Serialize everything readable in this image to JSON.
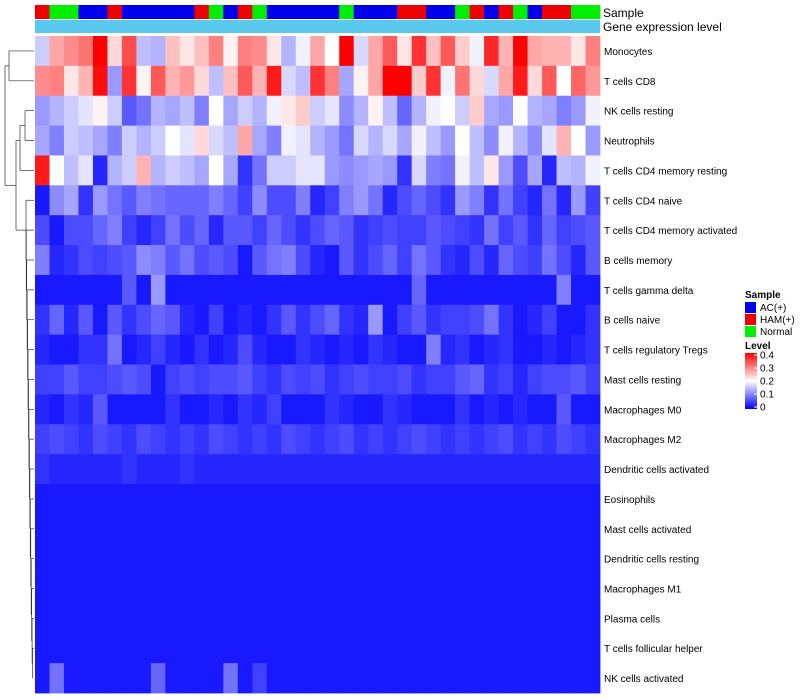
{
  "chart_data": {
    "type": "heatmap",
    "annotation_labels": {
      "sample": "Sample",
      "gene": "Gene expression level"
    },
    "sample_groups": [
      "R",
      "G",
      "G",
      "B",
      "B",
      "R",
      "B",
      "B",
      "B",
      "B",
      "B",
      "R",
      "G",
      "B",
      "R",
      "G",
      "B",
      "B",
      "B",
      "B",
      "B",
      "G",
      "B",
      "B",
      "B",
      "R",
      "R",
      "B",
      "B",
      "G",
      "R",
      "B",
      "R",
      "G",
      "B",
      "R",
      "R",
      "G",
      "G"
    ],
    "rows": [
      "Monocytes",
      "T cells CD8",
      "NK cells resting",
      "Neutrophils",
      "T cells CD4 memory resting",
      "T cells CD4 naive",
      "T cells CD4 memory activated",
      "B cells memory",
      "T cells gamma delta",
      "B cells naive",
      "T cells regulatory  Tregs",
      "Mast cells resting",
      "Macrophages M0",
      "Macrophages M2",
      "Dendritic cells activated",
      "Eosinophils",
      "Mast cells activated",
      "Dendritic cells resting",
      "Macrophages M1",
      "Plasma cells",
      "T cells follicular helper",
      "NK cells activated"
    ],
    "values": [
      [
        0.16,
        0.27,
        0.29,
        0.31,
        0.4,
        0.23,
        0.34,
        0.15,
        0.14,
        0.25,
        0.22,
        0.25,
        0.3,
        0.21,
        0.3,
        0.29,
        0.22,
        0.14,
        0.19,
        0.27,
        0.2,
        0.4,
        0.17,
        0.27,
        0.33,
        0.22,
        0.36,
        0.25,
        0.33,
        0.24,
        0.19,
        0.37,
        0.26,
        0.4,
        0.27,
        0.26,
        0.26,
        0.22,
        0.3
      ],
      [
        0.29,
        0.3,
        0.22,
        0.26,
        0.39,
        0.12,
        0.36,
        0.21,
        0.33,
        0.26,
        0.28,
        0.23,
        0.15,
        0.25,
        0.33,
        0.26,
        0.38,
        0.17,
        0.15,
        0.36,
        0.3,
        0.13,
        0.21,
        0.27,
        0.4,
        0.4,
        0.24,
        0.36,
        0.19,
        0.31,
        0.23,
        0.17,
        0.27,
        0.38,
        0.23,
        0.33,
        0.2,
        0.32,
        0.28
      ],
      [
        0.12,
        0.14,
        0.16,
        0.18,
        0.21,
        0.16,
        0.07,
        0.09,
        0.14,
        0.13,
        0.15,
        0.1,
        0.2,
        0.13,
        0.16,
        0.14,
        0.19,
        0.22,
        0.24,
        0.16,
        0.18,
        0.11,
        0.14,
        0.21,
        0.15,
        0.08,
        0.14,
        0.19,
        0.2,
        0.16,
        0.24,
        0.13,
        0.12,
        0.2,
        0.14,
        0.13,
        0.1,
        0.12,
        0.19
      ],
      [
        0.13,
        0.1,
        0.16,
        0.15,
        0.13,
        0.1,
        0.16,
        0.14,
        0.16,
        0.2,
        0.18,
        0.23,
        0.17,
        0.15,
        0.27,
        0.13,
        0.1,
        0.19,
        0.18,
        0.14,
        0.12,
        0.09,
        0.17,
        0.14,
        0.17,
        0.13,
        0.19,
        0.15,
        0.12,
        0.2,
        0.15,
        0.11,
        0.19,
        0.14,
        0.11,
        0.18,
        0.26,
        0.2,
        0.12
      ],
      [
        0.38,
        0.2,
        0.15,
        0.18,
        0.03,
        0.14,
        0.16,
        0.26,
        0.14,
        0.16,
        0.15,
        0.13,
        0.2,
        0.13,
        0.04,
        0.09,
        0.16,
        0.16,
        0.18,
        0.18,
        0.12,
        0.11,
        0.12,
        0.13,
        0.12,
        0.04,
        0.17,
        0.1,
        0.09,
        0.19,
        0.15,
        0.22,
        0.12,
        0.06,
        0.13,
        0.03,
        0.15,
        0.14,
        0.19
      ],
      [
        0.02,
        0.11,
        0.13,
        0.04,
        0.12,
        0.09,
        0.07,
        0.1,
        0.09,
        0.08,
        0.08,
        0.08,
        0.1,
        0.08,
        0.05,
        0.11,
        0.06,
        0.06,
        0.1,
        0.03,
        0.05,
        0.1,
        0.12,
        0.09,
        0.03,
        0.06,
        0.08,
        0.06,
        0.04,
        0.12,
        0.1,
        0.04,
        0.09,
        0.05,
        0.03,
        0.09,
        0.03,
        0.12,
        0.05
      ],
      [
        0.06,
        0.02,
        0.06,
        0.06,
        0.08,
        0.1,
        0.05,
        0.03,
        0.05,
        0.09,
        0.06,
        0.08,
        0.03,
        0.07,
        0.07,
        0.05,
        0.08,
        0.06,
        0.04,
        0.06,
        0.08,
        0.07,
        0.04,
        0.05,
        0.06,
        0.05,
        0.05,
        0.07,
        0.06,
        0.05,
        0.04,
        0.09,
        0.05,
        0.07,
        0.04,
        0.08,
        0.05,
        0.06,
        0.07
      ],
      [
        0.1,
        0.03,
        0.04,
        0.06,
        0.05,
        0.06,
        0.07,
        0.11,
        0.1,
        0.07,
        0.09,
        0.06,
        0.07,
        0.06,
        0.02,
        0.07,
        0.09,
        0.1,
        0.06,
        0.03,
        0.02,
        0.07,
        0.04,
        0.06,
        0.08,
        0.05,
        0.09,
        0.07,
        0.04,
        0.03,
        0.06,
        0.03,
        0.08,
        0.06,
        0.05,
        0.09,
        0.06,
        0.03,
        0.07
      ],
      [
        0.02,
        0.02,
        0.02,
        0.02,
        0.02,
        0.02,
        0.07,
        0.02,
        0.12,
        0.02,
        0.02,
        0.02,
        0.02,
        0.02,
        0.02,
        0.02,
        0.02,
        0.02,
        0.02,
        0.02,
        0.02,
        0.02,
        0.02,
        0.02,
        0.02,
        0.02,
        0.08,
        0.02,
        0.02,
        0.02,
        0.02,
        0.02,
        0.02,
        0.02,
        0.02,
        0.02,
        0.1,
        0.02,
        0.02
      ],
      [
        0.04,
        0.08,
        0.03,
        0.07,
        0.02,
        0.07,
        0.04,
        0.06,
        0.08,
        0.07,
        0.03,
        0.02,
        0.05,
        0.02,
        0.03,
        0.02,
        0.04,
        0.07,
        0.04,
        0.06,
        0.08,
        0.04,
        0.03,
        0.12,
        0.02,
        0.05,
        0.07,
        0.04,
        0.05,
        0.05,
        0.06,
        0.09,
        0.04,
        0.02,
        0.03,
        0.05,
        0.02,
        0.02,
        0.04
      ],
      [
        0.03,
        0.02,
        0.02,
        0.04,
        0.04,
        0.09,
        0.02,
        0.03,
        0.05,
        0.03,
        0.02,
        0.04,
        0.02,
        0.03,
        0.06,
        0.03,
        0.02,
        0.02,
        0.04,
        0.03,
        0.02,
        0.03,
        0.02,
        0.04,
        0.03,
        0.02,
        0.02,
        0.1,
        0.03,
        0.04,
        0.02,
        0.03,
        0.04,
        0.02,
        0.02,
        0.03,
        0.02,
        0.03,
        0.04
      ],
      [
        0.05,
        0.05,
        0.07,
        0.05,
        0.05,
        0.06,
        0.07,
        0.06,
        0.02,
        0.05,
        0.06,
        0.05,
        0.06,
        0.06,
        0.07,
        0.05,
        0.04,
        0.06,
        0.05,
        0.06,
        0.04,
        0.05,
        0.06,
        0.05,
        0.05,
        0.06,
        0.04,
        0.05,
        0.05,
        0.07,
        0.08,
        0.04,
        0.05,
        0.03,
        0.05,
        0.06,
        0.06,
        0.07,
        0.05
      ],
      [
        0.03,
        0.02,
        0.04,
        0.03,
        0.07,
        0.02,
        0.02,
        0.02,
        0.02,
        0.04,
        0.02,
        0.02,
        0.03,
        0.02,
        0.04,
        0.03,
        0.05,
        0.02,
        0.02,
        0.02,
        0.04,
        0.03,
        0.02,
        0.02,
        0.04,
        0.03,
        0.02,
        0.02,
        0.02,
        0.04,
        0.02,
        0.03,
        0.02,
        0.03,
        0.02,
        0.02,
        0.07,
        0.02,
        0.02
      ],
      [
        0.05,
        0.06,
        0.05,
        0.04,
        0.06,
        0.05,
        0.04,
        0.06,
        0.05,
        0.04,
        0.05,
        0.04,
        0.06,
        0.05,
        0.04,
        0.05,
        0.04,
        0.06,
        0.05,
        0.04,
        0.05,
        0.06,
        0.04,
        0.05,
        0.04,
        0.05,
        0.06,
        0.05,
        0.04,
        0.05,
        0.04,
        0.05,
        0.06,
        0.04,
        0.05,
        0.04,
        0.06,
        0.05,
        0.04
      ],
      [
        0.04,
        0.03,
        0.03,
        0.03,
        0.03,
        0.03,
        0.04,
        0.03,
        0.03,
        0.03,
        0.04,
        0.03,
        0.03,
        0.03,
        0.03,
        0.03,
        0.03,
        0.03,
        0.03,
        0.03,
        0.03,
        0.03,
        0.03,
        0.03,
        0.03,
        0.03,
        0.03,
        0.03,
        0.03,
        0.03,
        0.03,
        0.03,
        0.03,
        0.03,
        0.03,
        0.03,
        0.03,
        0.03,
        0.03
      ],
      [
        0.02,
        0.02,
        0.02,
        0.02,
        0.02,
        0.02,
        0.02,
        0.02,
        0.02,
        0.02,
        0.02,
        0.02,
        0.02,
        0.02,
        0.02,
        0.02,
        0.02,
        0.02,
        0.02,
        0.02,
        0.02,
        0.02,
        0.02,
        0.02,
        0.02,
        0.02,
        0.02,
        0.02,
        0.02,
        0.02,
        0.02,
        0.02,
        0.02,
        0.02,
        0.02,
        0.02,
        0.02,
        0.02,
        0.02
      ],
      [
        0.02,
        0.02,
        0.02,
        0.02,
        0.02,
        0.02,
        0.02,
        0.02,
        0.02,
        0.02,
        0.02,
        0.02,
        0.02,
        0.02,
        0.02,
        0.02,
        0.02,
        0.02,
        0.02,
        0.02,
        0.02,
        0.02,
        0.02,
        0.02,
        0.02,
        0.02,
        0.02,
        0.02,
        0.02,
        0.02,
        0.02,
        0.02,
        0.02,
        0.02,
        0.02,
        0.02,
        0.02,
        0.02,
        0.02
      ],
      [
        0.02,
        0.02,
        0.02,
        0.02,
        0.02,
        0.02,
        0.02,
        0.02,
        0.02,
        0.02,
        0.02,
        0.02,
        0.02,
        0.02,
        0.02,
        0.02,
        0.02,
        0.02,
        0.02,
        0.02,
        0.02,
        0.02,
        0.02,
        0.02,
        0.02,
        0.02,
        0.02,
        0.02,
        0.02,
        0.02,
        0.02,
        0.02,
        0.02,
        0.02,
        0.02,
        0.02,
        0.02,
        0.02,
        0.02
      ],
      [
        0.02,
        0.02,
        0.02,
        0.02,
        0.02,
        0.02,
        0.02,
        0.02,
        0.02,
        0.02,
        0.02,
        0.02,
        0.02,
        0.02,
        0.02,
        0.02,
        0.02,
        0.02,
        0.02,
        0.02,
        0.02,
        0.02,
        0.02,
        0.02,
        0.02,
        0.02,
        0.02,
        0.02,
        0.02,
        0.02,
        0.02,
        0.02,
        0.02,
        0.02,
        0.02,
        0.02,
        0.02,
        0.02,
        0.02
      ],
      [
        0.02,
        0.02,
        0.02,
        0.02,
        0.02,
        0.02,
        0.02,
        0.02,
        0.02,
        0.02,
        0.02,
        0.02,
        0.02,
        0.02,
        0.02,
        0.02,
        0.02,
        0.02,
        0.02,
        0.02,
        0.02,
        0.02,
        0.02,
        0.02,
        0.02,
        0.02,
        0.02,
        0.02,
        0.02,
        0.02,
        0.02,
        0.02,
        0.02,
        0.02,
        0.02,
        0.02,
        0.02,
        0.02,
        0.02
      ],
      [
        0.02,
        0.02,
        0.02,
        0.02,
        0.02,
        0.02,
        0.02,
        0.02,
        0.02,
        0.02,
        0.02,
        0.02,
        0.02,
        0.02,
        0.02,
        0.02,
        0.02,
        0.02,
        0.02,
        0.02,
        0.02,
        0.02,
        0.02,
        0.02,
        0.02,
        0.02,
        0.02,
        0.02,
        0.02,
        0.02,
        0.02,
        0.02,
        0.02,
        0.02,
        0.02,
        0.02,
        0.02,
        0.02,
        0.02
      ],
      [
        0.02,
        0.09,
        0.02,
        0.02,
        0.02,
        0.02,
        0.02,
        0.02,
        0.08,
        0.02,
        0.02,
        0.02,
        0.02,
        0.09,
        0.02,
        0.05,
        0.02,
        0.02,
        0.02,
        0.02,
        0.02,
        0.02,
        0.02,
        0.02,
        0.02,
        0.02,
        0.02,
        0.02,
        0.02,
        0.02,
        0.02,
        0.02,
        0.02,
        0.02,
        0.02,
        0.02,
        0.02,
        0.02,
        0.02
      ]
    ],
    "legend": {
      "sample_title": "Sample",
      "groups": [
        {
          "key": "B",
          "label": "AC(+)",
          "color": "#0000ee"
        },
        {
          "key": "R",
          "label": "HAM(+)",
          "color": "#ee0000"
        },
        {
          "key": "G",
          "label": "Normal",
          "color": "#00ee00"
        }
      ],
      "level_title": "Level",
      "level_ticks": [
        "0.4",
        "0.3",
        "0.2",
        "0.1",
        "0"
      ],
      "level_range": [
        0,
        0.4
      ]
    },
    "colors": {
      "low": "#0000ff",
      "mid": "#ffffff",
      "high": "#ff0000",
      "gene_bar": "#5bc8ed"
    }
  }
}
